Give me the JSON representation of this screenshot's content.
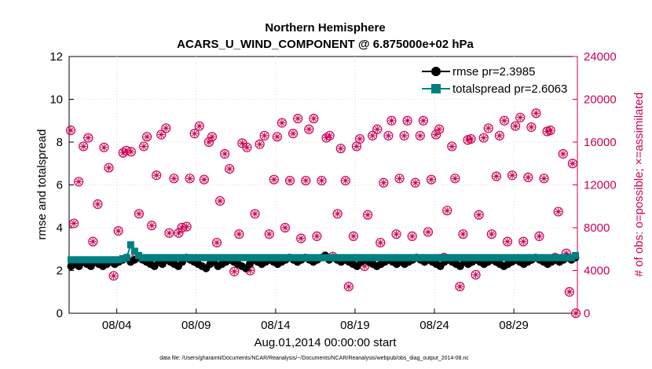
{
  "chart_data": {
    "type": "line",
    "title_line1": "Northern Hemisphere",
    "title_line2": "ACARS_U_WIND_COMPONENT @ 6.875000e+02 hPa",
    "xlabel": "Aug.01,2014 00:00:00 start",
    "ylabel_left": "rmse and totalspread",
    "ylabel_right": "# of obs: o=possible; ×=assimilated",
    "footnote": "data file: /Users/gharamti/Documents/NCAR/Reanalysis/~/Documents/NCAR/Reanalysis/webpub/obs_diag_output_2014-08.nc",
    "x_range_days": [
      0,
      32
    ],
    "ylim_left": [
      0,
      12
    ],
    "ylim_right": [
      0,
      24000
    ],
    "yticks_left": [
      "0",
      "2",
      "4",
      "6",
      "8",
      "10",
      "12"
    ],
    "yticks_right": [
      "0",
      "4000",
      "8000",
      "12000",
      "16000",
      "20000",
      "24000"
    ],
    "xticks": [
      {
        "day": 3,
        "label": "08/04"
      },
      {
        "day": 8,
        "label": "08/09"
      },
      {
        "day": 13,
        "label": "08/14"
      },
      {
        "day": 18,
        "label": "08/19"
      },
      {
        "day": 23,
        "label": "08/24"
      },
      {
        "day": 28,
        "label": "08/29"
      }
    ],
    "series": [
      {
        "name": "rmse",
        "legend": "rmse pr=2.3985",
        "color": "#000000",
        "approx_values": [
          2.2,
          2.3,
          2.2,
          2.4,
          2.3,
          2.2,
          2.4,
          2.3,
          2.2,
          2.3,
          2.4,
          2.3,
          2.4,
          2.5,
          2.6,
          2.4,
          2.5,
          2.6,
          2.5,
          2.4,
          2.3,
          2.2,
          2.4,
          2.3,
          2.5,
          2.4,
          2.3,
          2.2,
          2.4,
          2.6,
          2.5,
          2.4,
          2.3,
          2.2,
          2.1,
          2.3,
          2.4,
          2.2,
          2.3,
          2.4,
          2.5,
          2.4,
          2.3,
          2.2,
          2.1,
          2.3,
          2.5,
          2.4,
          2.3,
          2.4,
          2.5,
          2.4,
          2.3,
          2.4,
          2.5,
          2.6,
          2.5,
          2.4,
          2.5,
          2.6,
          2.5,
          2.4,
          2.5,
          2.6,
          2.7,
          2.5,
          2.6,
          2.5,
          2.4,
          2.5,
          2.4,
          2.3,
          2.2,
          2.4,
          2.5,
          2.4,
          2.3,
          2.2,
          2.3,
          2.4,
          2.5,
          2.4,
          2.3,
          2.4,
          2.3,
          2.4,
          2.5,
          2.6,
          2.5,
          2.4,
          2.5,
          2.4,
          2.3,
          2.2,
          2.4,
          2.5,
          2.4,
          2.3,
          2.2,
          2.4,
          2.3,
          2.4,
          2.5,
          2.4,
          2.3,
          2.4,
          2.5,
          2.4,
          2.3,
          2.2,
          2.3,
          2.4,
          2.5,
          2.4,
          2.3,
          2.4,
          2.5,
          2.6,
          2.5,
          2.4,
          2.3,
          2.4,
          2.5,
          2.4,
          2.5,
          2.6,
          2.5,
          2.6
        ]
      },
      {
        "name": "totalspread",
        "legend": "totalspread pr=2.6063",
        "color": "#008080",
        "approx_values": [
          2.5,
          2.5,
          2.5,
          2.5,
          2.5,
          2.5,
          2.5,
          2.5,
          2.5,
          2.5,
          2.5,
          2.5,
          2.5,
          2.55,
          2.6,
          3.2,
          2.9,
          2.7,
          2.6,
          2.6,
          2.6,
          2.6,
          2.6,
          2.6,
          2.6,
          2.6,
          2.6,
          2.6,
          2.6,
          2.6,
          2.6,
          2.6,
          2.6,
          2.6,
          2.6,
          2.6,
          2.6,
          2.6,
          2.6,
          2.6,
          2.6,
          2.6,
          2.6,
          2.6,
          2.6,
          2.6,
          2.6,
          2.6,
          2.6,
          2.6,
          2.6,
          2.6,
          2.6,
          2.6,
          2.6,
          2.6,
          2.6,
          2.6,
          2.6,
          2.6,
          2.6,
          2.6,
          2.6,
          2.6,
          2.6,
          2.6,
          2.6,
          2.6,
          2.6,
          2.6,
          2.6,
          2.6,
          2.6,
          2.6,
          2.6,
          2.6,
          2.6,
          2.6,
          2.6,
          2.6,
          2.6,
          2.6,
          2.6,
          2.6,
          2.6,
          2.6,
          2.6,
          2.6,
          2.6,
          2.6,
          2.6,
          2.6,
          2.6,
          2.6,
          2.6,
          2.6,
          2.6,
          2.6,
          2.6,
          2.6,
          2.6,
          2.6,
          2.6,
          2.6,
          2.6,
          2.6,
          2.6,
          2.6,
          2.6,
          2.6,
          2.6,
          2.6,
          2.6,
          2.6,
          2.6,
          2.6,
          2.6,
          2.6,
          2.6,
          2.6,
          2.6,
          2.6,
          2.6,
          2.6,
          2.6,
          2.6,
          2.6,
          2.7
        ]
      },
      {
        "name": "obs_count",
        "color": "#cc0055",
        "axis": "right",
        "marker": "circle+star",
        "points": [
          {
            "day": 0.1,
            "v": 17100
          },
          {
            "day": 0.3,
            "v": 8400
          },
          {
            "day": 0.6,
            "v": 12300
          },
          {
            "day": 0.9,
            "v": 15600
          },
          {
            "day": 1.2,
            "v": 16400
          },
          {
            "day": 1.5,
            "v": 6700
          },
          {
            "day": 1.8,
            "v": 10200
          },
          {
            "day": 2.2,
            "v": 15500
          },
          {
            "day": 2.5,
            "v": 13600
          },
          {
            "day": 2.8,
            "v": 3500
          },
          {
            "day": 3.1,
            "v": 7700
          },
          {
            "day": 3.4,
            "v": 15000
          },
          {
            "day": 3.6,
            "v": 15200
          },
          {
            "day": 3.9,
            "v": 15100
          },
          {
            "day": 4.2,
            "v": 5200
          },
          {
            "day": 4.4,
            "v": 9300
          },
          {
            "day": 4.7,
            "v": 15600
          },
          {
            "day": 4.9,
            "v": 16500
          },
          {
            "day": 5.2,
            "v": 8200
          },
          {
            "day": 5.5,
            "v": 12900
          },
          {
            "day": 5.8,
            "v": 16700
          },
          {
            "day": 6.1,
            "v": 17300
          },
          {
            "day": 6.3,
            "v": 7500
          },
          {
            "day": 6.6,
            "v": 12600
          },
          {
            "day": 6.9,
            "v": 7500
          },
          {
            "day": 7.1,
            "v": 8000
          },
          {
            "day": 7.4,
            "v": 8100
          },
          {
            "day": 7.6,
            "v": 12600
          },
          {
            "day": 7.9,
            "v": 16800
          },
          {
            "day": 8.2,
            "v": 17500
          },
          {
            "day": 8.5,
            "v": 12500
          },
          {
            "day": 8.8,
            "v": 16000
          },
          {
            "day": 9.0,
            "v": 16500
          },
          {
            "day": 9.3,
            "v": 6600
          },
          {
            "day": 9.5,
            "v": 10500
          },
          {
            "day": 9.8,
            "v": 14900
          },
          {
            "day": 10.1,
            "v": 13500
          },
          {
            "day": 10.4,
            "v": 3900
          },
          {
            "day": 10.7,
            "v": 7400
          },
          {
            "day": 10.9,
            "v": 15900
          },
          {
            "day": 11.2,
            "v": 15500
          },
          {
            "day": 11.4,
            "v": 4000
          },
          {
            "day": 11.7,
            "v": 9300
          },
          {
            "day": 12.0,
            "v": 15800
          },
          {
            "day": 12.3,
            "v": 16600
          },
          {
            "day": 12.6,
            "v": 7400
          },
          {
            "day": 12.9,
            "v": 12500
          },
          {
            "day": 13.1,
            "v": 16500
          },
          {
            "day": 13.4,
            "v": 17800
          },
          {
            "day": 13.6,
            "v": 8000
          },
          {
            "day": 13.9,
            "v": 12400
          },
          {
            "day": 14.1,
            "v": 16800
          },
          {
            "day": 14.4,
            "v": 18200
          },
          {
            "day": 14.6,
            "v": 7000
          },
          {
            "day": 14.9,
            "v": 12400
          },
          {
            "day": 15.1,
            "v": 17200
          },
          {
            "day": 15.4,
            "v": 18200
          },
          {
            "day": 15.6,
            "v": 7200
          },
          {
            "day": 15.9,
            "v": 12400
          },
          {
            "day": 16.2,
            "v": 16400
          },
          {
            "day": 16.4,
            "v": 16600
          },
          {
            "day": 16.6,
            "v": 5300
          },
          {
            "day": 16.9,
            "v": 9300
          },
          {
            "day": 17.1,
            "v": 15400
          },
          {
            "day": 17.4,
            "v": 12400
          },
          {
            "day": 17.6,
            "v": 2500
          },
          {
            "day": 17.9,
            "v": 7200
          },
          {
            "day": 18.1,
            "v": 15600
          },
          {
            "day": 18.3,
            "v": 16300
          },
          {
            "day": 18.6,
            "v": 4400
          },
          {
            "day": 18.8,
            "v": 9200
          },
          {
            "day": 19.1,
            "v": 16600
          },
          {
            "day": 19.4,
            "v": 17200
          },
          {
            "day": 19.6,
            "v": 6600
          },
          {
            "day": 19.8,
            "v": 12200
          },
          {
            "day": 20.1,
            "v": 16600
          },
          {
            "day": 20.3,
            "v": 18000
          },
          {
            "day": 20.6,
            "v": 7400
          },
          {
            "day": 20.8,
            "v": 12600
          },
          {
            "day": 21.1,
            "v": 16600
          },
          {
            "day": 21.3,
            "v": 18000
          },
          {
            "day": 21.6,
            "v": 7200
          },
          {
            "day": 21.8,
            "v": 12200
          },
          {
            "day": 22.1,
            "v": 16600
          },
          {
            "day": 22.3,
            "v": 18000
          },
          {
            "day": 22.6,
            "v": 7600
          },
          {
            "day": 22.8,
            "v": 12500
          },
          {
            "day": 23.1,
            "v": 16700
          },
          {
            "day": 23.3,
            "v": 17200
          },
          {
            "day": 23.6,
            "v": 5200
          },
          {
            "day": 23.8,
            "v": 9600
          },
          {
            "day": 24.1,
            "v": 15600
          },
          {
            "day": 24.3,
            "v": 12600
          },
          {
            "day": 24.6,
            "v": 2500
          },
          {
            "day": 24.8,
            "v": 7400
          },
          {
            "day": 25.1,
            "v": 16200
          },
          {
            "day": 25.3,
            "v": 16300
          },
          {
            "day": 25.6,
            "v": 3600
          },
          {
            "day": 25.8,
            "v": 9200
          },
          {
            "day": 26.1,
            "v": 16400
          },
          {
            "day": 26.4,
            "v": 17300
          },
          {
            "day": 26.6,
            "v": 7400
          },
          {
            "day": 26.9,
            "v": 12800
          },
          {
            "day": 27.1,
            "v": 16600
          },
          {
            "day": 27.4,
            "v": 18000
          },
          {
            "day": 27.6,
            "v": 6700
          },
          {
            "day": 27.9,
            "v": 12900
          },
          {
            "day": 28.1,
            "v": 17500
          },
          {
            "day": 28.4,
            "v": 18300
          },
          {
            "day": 28.6,
            "v": 6700
          },
          {
            "day": 28.9,
            "v": 12700
          },
          {
            "day": 29.1,
            "v": 17400
          },
          {
            "day": 29.4,
            "v": 18700
          },
          {
            "day": 29.6,
            "v": 7200
          },
          {
            "day": 29.9,
            "v": 12600
          },
          {
            "day": 30.1,
            "v": 17000
          },
          {
            "day": 30.3,
            "v": 17100
          },
          {
            "day": 30.6,
            "v": 5200
          },
          {
            "day": 30.8,
            "v": 9500
          },
          {
            "day": 31.1,
            "v": 14900
          },
          {
            "day": 31.3,
            "v": 5600
          },
          {
            "day": 31.5,
            "v": 2000
          },
          {
            "day": 31.7,
            "v": 14000
          },
          {
            "day": 31.9,
            "v": 0
          }
        ]
      }
    ]
  },
  "colors": {
    "rmse": "#000000",
    "totalspread": "#008080",
    "obs": "#cc0055"
  }
}
